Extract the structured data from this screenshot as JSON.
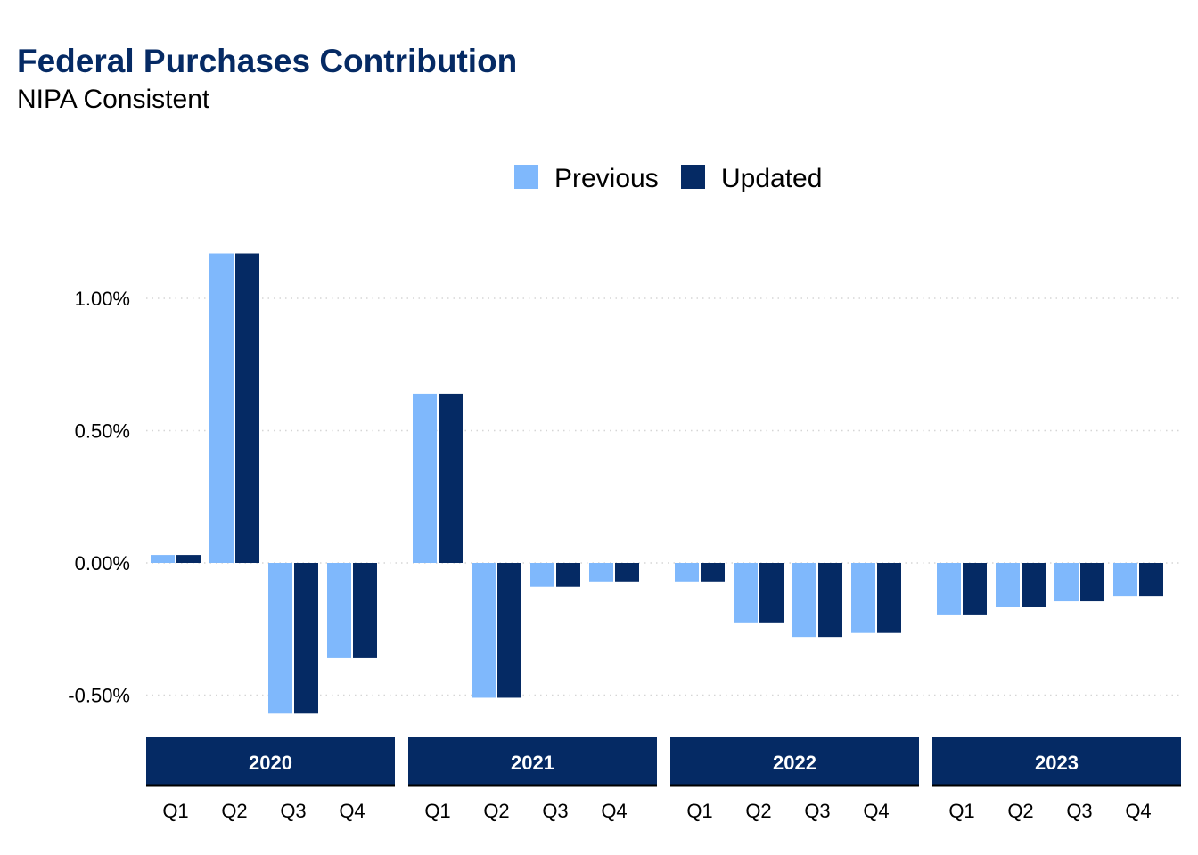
{
  "title": "Federal Purchases Contribution",
  "subtitle": "NIPA Consistent",
  "colors": {
    "title": "#052a64",
    "previous": "#7fb8fc",
    "updated": "#052a64",
    "strip": "#052a64",
    "grid": "#d6d6d6"
  },
  "chart_data": {
    "type": "bar",
    "title": "Federal Purchases Contribution",
    "subtitle": "NIPA Consistent",
    "xlabel": "",
    "ylabel": "",
    "ylim": [
      -0.66,
      1.2
    ],
    "yticks": [
      -0.5,
      0.0,
      0.5,
      1.0
    ],
    "ytick_labels": [
      "-0.50%",
      "0.00%",
      "0.50%",
      "1.00%"
    ],
    "grid": "horizontal dotted",
    "legend_position": "top-center",
    "legend": [
      "Previous",
      "Updated"
    ],
    "panels": [
      "2020",
      "2021",
      "2022",
      "2023"
    ],
    "categories": [
      "Q1",
      "Q2",
      "Q3",
      "Q4"
    ],
    "series": [
      {
        "name": "Previous",
        "values": [
          [
            0.03,
            1.17,
            -0.57,
            -0.36
          ],
          [
            0.64,
            -0.51,
            -0.09,
            -0.07
          ],
          [
            -0.07,
            -0.225,
            -0.28,
            -0.265
          ],
          [
            -0.195,
            -0.165,
            -0.145,
            -0.125
          ]
        ]
      },
      {
        "name": "Updated",
        "values": [
          [
            0.03,
            1.17,
            -0.57,
            -0.36
          ],
          [
            0.64,
            -0.51,
            -0.09,
            -0.07
          ],
          [
            -0.07,
            -0.225,
            -0.28,
            -0.265
          ],
          [
            -0.195,
            -0.165,
            -0.145,
            -0.125
          ]
        ]
      }
    ]
  }
}
